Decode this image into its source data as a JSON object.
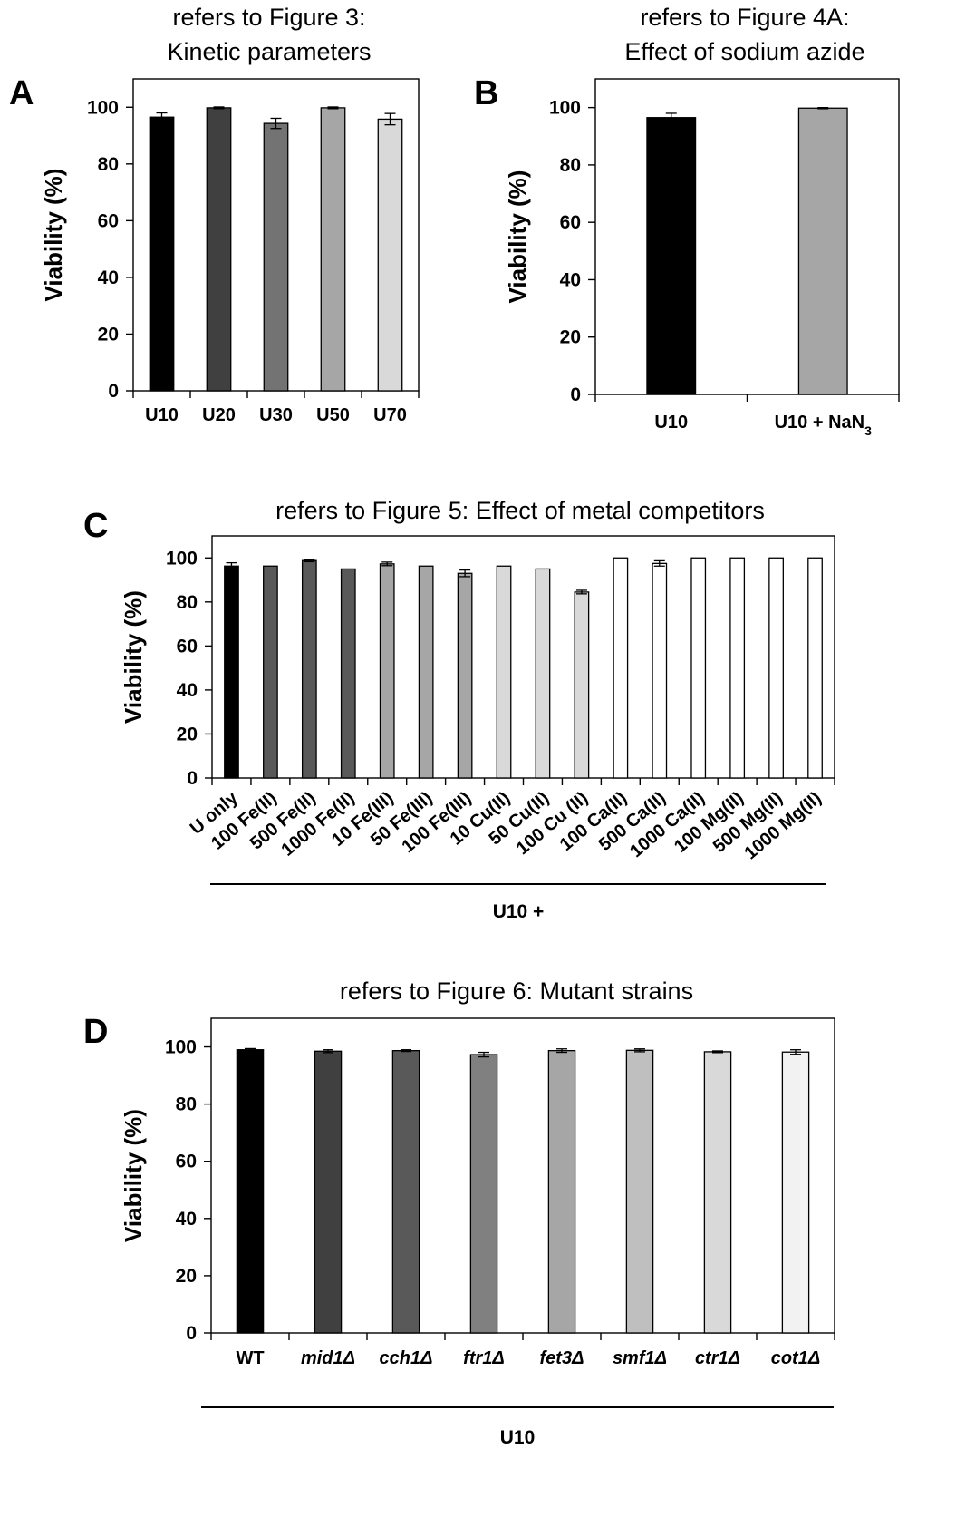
{
  "chart_data": [
    {
      "type": "bar",
      "panel": "A",
      "title": "refers to Figure 3:\nKinetic parameters",
      "ylabel": "Viability (%)",
      "ylim": [
        0,
        110
      ],
      "yticks": [
        0,
        20,
        40,
        60,
        80,
        100
      ],
      "categories": [
        "U10",
        "U20",
        "U30",
        "U50",
        "U70"
      ],
      "values": [
        96.5,
        99.8,
        94.3,
        99.8,
        95.8
      ],
      "errors": [
        1.5,
        0.3,
        1.8,
        0.3,
        2.0
      ],
      "colors": [
        "#000000",
        "#404040",
        "#737373",
        "#a6a6a6",
        "#d9d9d9"
      ]
    },
    {
      "type": "bar",
      "panel": "B",
      "title": "refers to Figure 4A:\nEffect of sodium azide",
      "ylabel": "Viability (%)",
      "ylim": [
        0,
        110
      ],
      "yticks": [
        0,
        20,
        40,
        60,
        80,
        100
      ],
      "categories": [
        "U10",
        "U10 + NaN3"
      ],
      "values": [
        96.5,
        99.8
      ],
      "errors": [
        1.5,
        0.2
      ],
      "colors": [
        "#000000",
        "#a6a6a6"
      ]
    },
    {
      "type": "bar",
      "panel": "C",
      "title": "refers to Figure 5: Effect of metal competitors",
      "ylabel": "Viability (%)",
      "group_label": "U10 +",
      "ylim": [
        0,
        110
      ],
      "yticks": [
        0,
        20,
        40,
        60,
        80,
        100
      ],
      "categories": [
        "U only",
        "100 Fe(II)",
        "500 Fe(II)",
        "1000 Fe(II)",
        "10 Fe(III)",
        "50 Fe(III)",
        "100 Fe(III)",
        "10 Cu(II)",
        "50 Cu(II)",
        "100 Cu (II)",
        "100 Ca(II)",
        "500 Ca(II)",
        "1000 Ca(II)",
        "100 Mg(II)",
        "500 Mg(II)",
        "1000 Mg(II)"
      ],
      "values": [
        96.3,
        96.3,
        98.8,
        95.0,
        97.3,
        96.3,
        93.0,
        96.3,
        95.0,
        84.5,
        100.0,
        97.5,
        100.0,
        100.0,
        100.0,
        100.0
      ],
      "errors": [
        1.5,
        0,
        0.5,
        0,
        0.8,
        0,
        1.5,
        0,
        0,
        0.8,
        0,
        1.2,
        0,
        0,
        0,
        0
      ],
      "colors": [
        "#000000",
        "#595959",
        "#595959",
        "#595959",
        "#a6a6a6",
        "#a6a6a6",
        "#a6a6a6",
        "#d9d9d9",
        "#d9d9d9",
        "#d9d9d9",
        "#ffffff",
        "#ffffff",
        "#ffffff",
        "#ffffff",
        "#ffffff",
        "#ffffff"
      ]
    },
    {
      "type": "bar",
      "panel": "D",
      "title": "refers to Figure 6: Mutant strains",
      "ylabel": "Viability (%)",
      "group_label": "U10",
      "ylim": [
        0,
        110
      ],
      "yticks": [
        0,
        20,
        40,
        60,
        80,
        100
      ],
      "categories": [
        "WT",
        "mid1Δ",
        "cch1Δ",
        "ftr1Δ",
        "fet3Δ",
        "smf1Δ",
        "ctr1Δ",
        "cot1Δ"
      ],
      "italic": [
        false,
        true,
        true,
        true,
        true,
        true,
        true,
        true
      ],
      "values": [
        99.0,
        98.5,
        98.7,
        97.3,
        98.7,
        98.8,
        98.3,
        98.2
      ],
      "errors": [
        0.4,
        0.5,
        0.3,
        0.8,
        0.6,
        0.5,
        0.3,
        0.8
      ],
      "colors": [
        "#000000",
        "#404040",
        "#595959",
        "#808080",
        "#a6a6a6",
        "#bfbfbf",
        "#d9d9d9",
        "#f2f2f2"
      ]
    }
  ]
}
